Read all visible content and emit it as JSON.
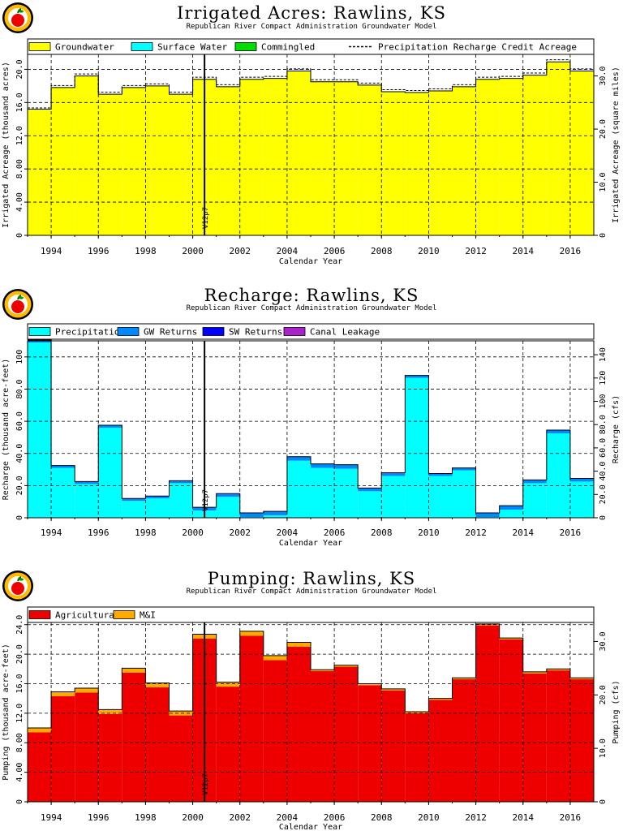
{
  "chart_data": [
    {
      "type": "bar",
      "title": "Irrigated Acres: Rawlins, KS",
      "subtitle": "Republican River Compact Administration Groundwater Model",
      "xlabel": "Calendar Year",
      "ylabel_left": "Irrigated Acreage (thousand acres)",
      "ylabel_right": "Irrigated Acreage (square miles)",
      "xlim": [
        1993,
        2017
      ],
      "ylim": [
        0,
        21.8
      ],
      "yticks": [
        0,
        4.0,
        8.0,
        12.0,
        16.0,
        20.0
      ],
      "ytick_labels": [
        "0",
        "4.00",
        "8.00",
        "12.0",
        "16.0",
        "20.0"
      ],
      "right_yticks": [
        0,
        10,
        20,
        30
      ],
      "right_ytick_labels": [
        "0",
        "10.0",
        "20.0",
        "30.0"
      ],
      "right_scale": 1.5625,
      "xticks": [
        1994,
        1996,
        1998,
        2000,
        2002,
        2004,
        2006,
        2008,
        2010,
        2012,
        2014,
        2016
      ],
      "categories": [
        1993,
        1994,
        1995,
        1996,
        1997,
        1998,
        1999,
        2000,
        2001,
        2002,
        2003,
        2004,
        2005,
        2006,
        2007,
        2008,
        2009,
        2010,
        2011,
        2012,
        2013,
        2014,
        2015,
        2016
      ],
      "series": [
        {
          "name": "Groundwater",
          "color": "#ffff00",
          "values": [
            15.2,
            17.8,
            19.2,
            17.0,
            17.8,
            18.0,
            17.0,
            18.8,
            17.9,
            18.8,
            18.9,
            19.8,
            18.5,
            18.5,
            18.1,
            17.3,
            17.2,
            17.4,
            17.9,
            18.8,
            18.9,
            19.3,
            20.9,
            19.8
          ]
        },
        {
          "name": "Surface Water",
          "color": "#00ffff",
          "values": [
            0,
            0,
            0,
            0,
            0,
            0,
            0,
            0,
            0,
            0,
            0,
            0,
            0,
            0,
            0,
            0,
            0,
            0,
            0,
            0,
            0,
            0,
            0,
            0
          ]
        },
        {
          "name": "Commingled",
          "color": "#00dd00",
          "values": [
            0,
            0,
            0,
            0,
            0,
            0,
            0,
            0,
            0,
            0,
            0,
            0,
            0,
            0,
            0,
            0,
            0,
            0,
            0,
            0,
            0,
            0,
            0,
            0
          ]
        }
      ],
      "dashed_series": {
        "name": "Precipitation Recharge Credit Acreage",
        "values": [
          15.2,
          17.9,
          19.3,
          17.1,
          17.9,
          18.1,
          17.1,
          18.9,
          18.0,
          18.9,
          19.0,
          19.9,
          18.6,
          18.6,
          18.2,
          17.4,
          17.3,
          17.5,
          18.0,
          18.9,
          19.0,
          19.4,
          21.0,
          19.9
        ]
      },
      "annotation": {
        "text": "V12p7",
        "x": 2000.5
      },
      "grid": true,
      "legend_position": "top"
    },
    {
      "type": "bar",
      "title": "Recharge: Rawlins, KS",
      "subtitle": "Republican River Compact Administration Groundwater Model",
      "xlabel": "Calendar Year",
      "ylabel_left": "Recharge (thousand acre-feet)",
      "ylabel_right": "Recharge (cfs)",
      "xlim": [
        1993,
        2017
      ],
      "ylim": [
        0,
        110
      ],
      "yticks": [
        0,
        20,
        40,
        60,
        80,
        100
      ],
      "ytick_labels": [
        "0",
        "20.0",
        "40.0",
        "60.0",
        "80.0",
        "100"
      ],
      "right_yticks": [
        0,
        20,
        40,
        60,
        80,
        100,
        120,
        140
      ],
      "right_ytick_labels": [
        "0",
        "20.0",
        "40.0",
        "60.0",
        "80.0",
        "100",
        "120",
        "140"
      ],
      "right_scale": 1.381,
      "xticks": [
        1994,
        1996,
        1998,
        2000,
        2002,
        2004,
        2006,
        2008,
        2010,
        2012,
        2014,
        2016
      ],
      "categories": [
        1993,
        1994,
        1995,
        1996,
        1997,
        1998,
        1999,
        2000,
        2001,
        2002,
        2003,
        2004,
        2005,
        2006,
        2007,
        2008,
        2009,
        2010,
        2011,
        2012,
        2013,
        2014,
        2015,
        2016
      ],
      "series": [
        {
          "name": "Precipitation",
          "color": "#00ffff",
          "values": [
            109.0,
            31.0,
            21.0,
            56.0,
            10.5,
            12.0,
            21.5,
            4.5,
            13.0,
            0.5,
            1.5,
            35.5,
            31.0,
            30.5,
            16.5,
            26.0,
            87.0,
            26.0,
            29.5,
            0.5,
            5.0,
            21.5,
            52.5,
            22.5
          ]
        },
        {
          "name": "GW Returns",
          "color": "#0088ff",
          "values": [
            1.5,
            1.5,
            1.5,
            1.5,
            1.5,
            1.5,
            1.5,
            2.0,
            2.0,
            2.5,
            2.5,
            2.5,
            2.5,
            2.5,
            2.0,
            2.0,
            1.5,
            1.5,
            1.5,
            2.5,
            2.5,
            2.0,
            2.0,
            2.0
          ]
        },
        {
          "name": "SW Returns",
          "color": "#0000ff",
          "values": [
            0,
            0,
            0,
            0,
            0,
            0,
            0,
            0,
            0,
            0,
            0,
            0,
            0,
            0,
            0,
            0,
            0,
            0,
            0,
            0,
            0,
            0,
            0,
            0
          ]
        },
        {
          "name": "Canal Leakage",
          "color": "#aa22cc",
          "values": [
            0,
            0,
            0,
            0,
            0,
            0,
            0,
            0,
            0,
            0,
            0,
            0,
            0,
            0,
            0,
            0,
            0,
            0,
            0,
            0,
            0,
            0,
            0,
            0
          ]
        }
      ],
      "annotation": {
        "text": "V12p7",
        "x": 2000.5
      },
      "grid": true,
      "legend_position": "top"
    },
    {
      "type": "bar",
      "title": "Pumping: Rawlins, KS",
      "subtitle": "Republican River Compact Administration Groundwater Model",
      "xlabel": "Calendar Year",
      "ylabel_left": "Pumping (thousand acre-feet)",
      "ylabel_right": "Pumping (cfs)",
      "xlim": [
        1993,
        2017
      ],
      "ylim": [
        0,
        24.3
      ],
      "yticks": [
        0,
        4.0,
        8.0,
        12.0,
        16.0,
        20.0,
        24.0
      ],
      "ytick_labels": [
        "0",
        "4.00",
        "8.00",
        "12.0",
        "16.0",
        "20.0",
        "24.0"
      ],
      "right_yticks": [
        0,
        10,
        20,
        30
      ],
      "right_ytick_labels": [
        "0",
        "10.0",
        "20.0",
        "30.0"
      ],
      "right_scale": 1.381,
      "xticks": [
        1994,
        1996,
        1998,
        2000,
        2002,
        2004,
        2006,
        2008,
        2010,
        2012,
        2014,
        2016
      ],
      "categories": [
        1993,
        1994,
        1995,
        1996,
        1997,
        1998,
        1999,
        2000,
        2001,
        2002,
        2003,
        2004,
        2005,
        2006,
        2007,
        2008,
        2009,
        2010,
        2011,
        2012,
        2013,
        2014,
        2015,
        2016
      ],
      "series": [
        {
          "name": "Agricultural",
          "color": "#ee0000",
          "values": [
            9.4,
            14.3,
            14.8,
            11.9,
            17.5,
            15.5,
            11.7,
            22.1,
            15.6,
            22.5,
            19.2,
            21.0,
            17.7,
            18.3,
            15.8,
            15.1,
            12.0,
            13.8,
            16.6,
            23.9,
            22.0,
            17.4,
            17.8,
            16.6
          ]
        },
        {
          "name": "M&I",
          "color": "#ffaa00",
          "values": [
            0.6,
            0.6,
            0.6,
            0.6,
            0.6,
            0.6,
            0.6,
            0.6,
            0.6,
            0.6,
            0.6,
            0.6,
            0.2,
            0.2,
            0.2,
            0.2,
            0.2,
            0.2,
            0.2,
            0.2,
            0.2,
            0.2,
            0.2,
            0.2
          ]
        }
      ],
      "annotation": {
        "text": "V12p7",
        "x": 2000.5
      },
      "grid": true,
      "legend_position": "top"
    }
  ]
}
